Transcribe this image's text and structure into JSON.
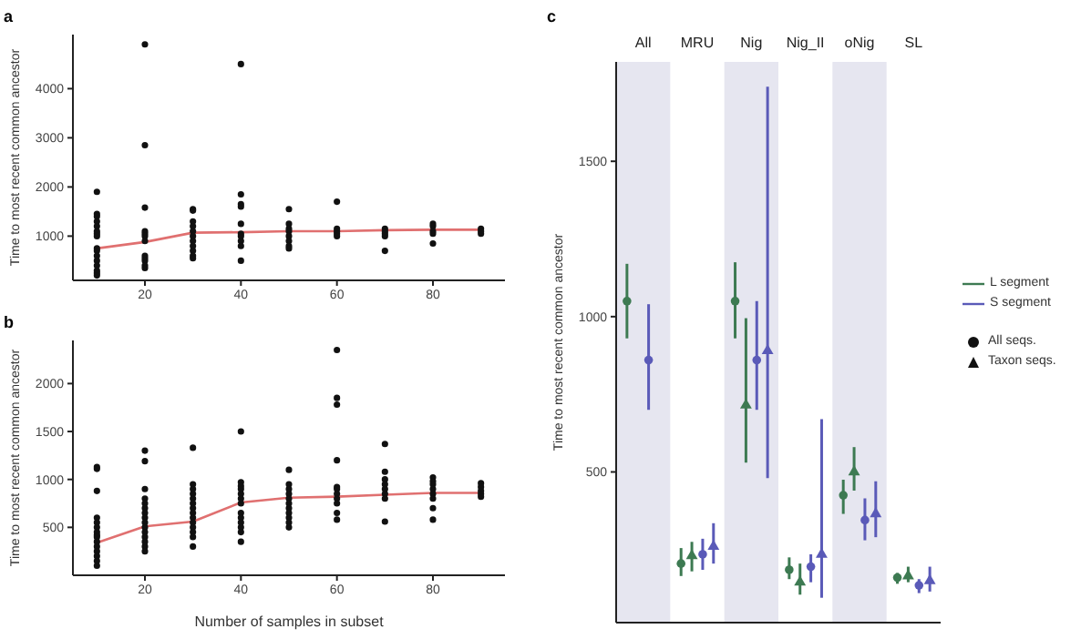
{
  "chart_data": [
    {
      "type": "scatter",
      "title": "a",
      "ylabel": "Time to most recent common ancestor",
      "xlim": [
        5,
        95
      ],
      "xticks": [
        20,
        40,
        60,
        80
      ],
      "ylim": [
        100,
        5100
      ],
      "yticks": [
        1000,
        2000,
        3000,
        4000
      ],
      "grid": false,
      "legend": false,
      "series": [
        {
          "type": "scatter",
          "color": "#111111",
          "marker": "circle",
          "x": [
            10,
            10,
            10,
            10,
            10,
            10,
            10,
            10,
            10,
            10,
            10,
            10,
            10,
            10,
            10,
            10,
            20,
            20,
            20,
            20,
            20,
            20,
            20,
            20,
            20,
            20,
            20,
            20,
            30,
            30,
            30,
            30,
            30,
            30,
            30,
            30,
            30,
            30,
            30,
            40,
            40,
            40,
            40,
            40,
            40,
            40,
            40,
            40,
            40,
            50,
            50,
            50,
            50,
            50,
            50,
            50,
            50,
            60,
            60,
            60,
            60,
            60,
            70,
            70,
            70,
            70,
            70,
            80,
            80,
            80,
            80,
            80,
            90,
            90,
            90
          ],
          "values": [
            1900,
            1450,
            1400,
            1300,
            1200,
            1100,
            1050,
            1000,
            750,
            700,
            600,
            500,
            400,
            300,
            250,
            200,
            4900,
            2850,
            1580,
            1100,
            1050,
            1000,
            900,
            600,
            550,
            500,
            400,
            350,
            1550,
            1520,
            1300,
            1200,
            1100,
            1000,
            900,
            800,
            700,
            600,
            550,
            4500,
            1850,
            1650,
            1600,
            1250,
            1050,
            1000,
            900,
            800,
            500,
            1550,
            1250,
            1150,
            1100,
            1000,
            900,
            800,
            750,
            1700,
            1150,
            1100,
            1050,
            1000,
            1150,
            1100,
            1050,
            1000,
            700,
            1250,
            1200,
            1100,
            1050,
            850,
            1150,
            1100,
            1050
          ]
        },
        {
          "type": "line",
          "color": "#e07070",
          "x": [
            10,
            20,
            30,
            40,
            50,
            60,
            70,
            80,
            90
          ],
          "values": [
            750,
            880,
            1070,
            1080,
            1100,
            1100,
            1120,
            1130,
            1130
          ]
        }
      ]
    },
    {
      "type": "scatter",
      "title": "b",
      "xlabel": "Number of samples in subset",
      "ylabel": "Time to most recent common ancestor",
      "xlim": [
        5,
        95
      ],
      "xticks": [
        20,
        40,
        60,
        80
      ],
      "ylim": [
        0,
        2450
      ],
      "yticks": [
        500,
        1000,
        1500,
        2000
      ],
      "grid": false,
      "legend": false,
      "series": [
        {
          "type": "scatter",
          "color": "#111111",
          "marker": "circle",
          "x": [
            10,
            10,
            10,
            10,
            10,
            10,
            10,
            10,
            10,
            10,
            10,
            10,
            10,
            10,
            10,
            20,
            20,
            20,
            20,
            20,
            20,
            20,
            20,
            20,
            20,
            20,
            20,
            20,
            20,
            20,
            30,
            30,
            30,
            30,
            30,
            30,
            30,
            30,
            30,
            30,
            30,
            30,
            30,
            30,
            40,
            40,
            40,
            40,
            40,
            40,
            40,
            40,
            40,
            40,
            40,
            40,
            40,
            50,
            50,
            50,
            50,
            50,
            50,
            50,
            50,
            50,
            50,
            50,
            60,
            60,
            60,
            60,
            60,
            60,
            60,
            60,
            60,
            60,
            60,
            70,
            70,
            70,
            70,
            70,
            70,
            70,
            70,
            80,
            80,
            80,
            80,
            80,
            80,
            80,
            80,
            90,
            90,
            90,
            90,
            90
          ],
          "values": [
            1130,
            1110,
            880,
            600,
            550,
            500,
            450,
            420,
            400,
            350,
            300,
            250,
            200,
            150,
            100,
            1300,
            1190,
            900,
            800,
            750,
            700,
            650,
            600,
            550,
            500,
            450,
            400,
            350,
            300,
            250,
            1330,
            950,
            900,
            850,
            800,
            750,
            700,
            650,
            600,
            550,
            500,
            450,
            400,
            300,
            1500,
            970,
            930,
            900,
            850,
            800,
            750,
            650,
            600,
            550,
            500,
            450,
            350,
            1100,
            950,
            900,
            850,
            800,
            750,
            700,
            650,
            600,
            550,
            500,
            2350,
            1850,
            1780,
            1200,
            920,
            900,
            850,
            800,
            750,
            650,
            580,
            1370,
            1080,
            1000,
            950,
            900,
            850,
            800,
            560,
            1020,
            980,
            950,
            900,
            850,
            800,
            700,
            580,
            960,
            920,
            880,
            850,
            820
          ]
        },
        {
          "type": "line",
          "color": "#e07070",
          "x": [
            10,
            20,
            30,
            40,
            50,
            60,
            70,
            80,
            90
          ],
          "values": [
            340,
            510,
            560,
            760,
            810,
            820,
            840,
            860,
            860
          ]
        }
      ]
    },
    {
      "type": "scatter",
      "title": "c",
      "ylabel": "Time to most recent common ancestor",
      "categories": [
        "All",
        "MRU",
        "Nig",
        "Nig_II",
        "oNig",
        "SL"
      ],
      "ylim": [
        15,
        1820
      ],
      "yticks": [
        500,
        1000,
        1500
      ],
      "grid": false,
      "legend": "right",
      "bands": [
        {
          "axis": "x",
          "from": "All",
          "to": "All",
          "color": "#e6e6f0"
        },
        {
          "axis": "x",
          "from": "Nig",
          "to": "Nig",
          "color": "#e6e6f0"
        },
        {
          "axis": "x",
          "from": "oNig",
          "to": "oNig",
          "color": "#e6e6f0"
        }
      ],
      "annotations": [
        "All seqs.",
        "Taxon seqs."
      ],
      "series": [
        {
          "name": "L segment",
          "color": "#3d7a52",
          "marker": "circle",
          "values": [
            1050,
            205,
            1050,
            185,
            425,
            160
          ],
          "errors": [
            [
              930,
              1170
            ],
            [
              165,
              255
            ],
            [
              930,
              1175
            ],
            [
              155,
              225
            ],
            [
              365,
              475
            ],
            [
              140,
              175
            ]
          ]
        },
        {
          "color": "#3d7a52",
          "marker": "triangle",
          "values": [
            null,
            230,
            715,
            145,
            500,
            165
          ],
          "errors": [
            null,
            [
              180,
              275
            ],
            [
              530,
              995
            ],
            [
              105,
              205
            ],
            [
              440,
              580
            ],
            [
              145,
              195
            ]
          ]
        },
        {
          "name": "S segment",
          "color": "#5a5ab8",
          "marker": "circle",
          "values": [
            860,
            235,
            860,
            195,
            345,
            135
          ],
          "errors": [
            [
              700,
              1040
            ],
            [
              185,
              285
            ],
            [
              700,
              1050
            ],
            [
              145,
              235
            ],
            [
              280,
              415
            ],
            [
              110,
              155
            ]
          ]
        },
        {
          "color": "#5a5ab8",
          "marker": "triangle",
          "values": [
            null,
            260,
            890,
            235,
            365,
            150
          ],
          "errors": [
            null,
            [
              205,
              335
            ],
            [
              480,
              1740
            ],
            [
              95,
              670
            ],
            [
              290,
              470
            ],
            [
              115,
              195
            ]
          ]
        }
      ]
    }
  ]
}
